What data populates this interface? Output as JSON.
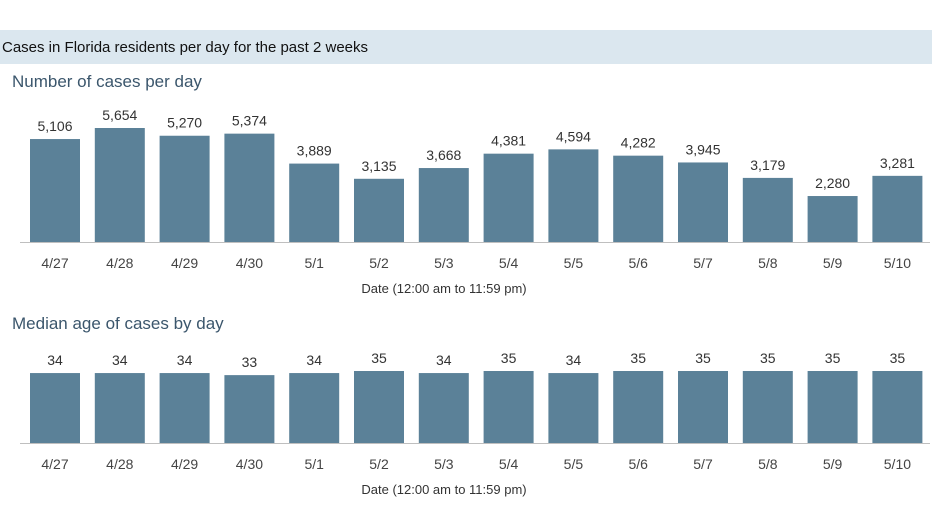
{
  "header": {
    "title": "Cases in Florida residents per day for the past 2 weeks"
  },
  "colors": {
    "bar": "#5b8198",
    "header_band": "#dbe7ef",
    "section_title": "#3b566c"
  },
  "chart_data": [
    {
      "type": "bar",
      "title": "Number of cases per day",
      "xlabel": "Date (12:00 am to 11:59 pm)",
      "ylabel": "",
      "ylim": [
        0,
        5654
      ],
      "grid": false,
      "categories": [
        "4/27",
        "4/28",
        "4/29",
        "4/30",
        "5/1",
        "5/2",
        "5/3",
        "5/4",
        "5/5",
        "5/6",
        "5/7",
        "5/8",
        "5/9",
        "5/10"
      ],
      "values": [
        5106,
        5654,
        5270,
        5374,
        3889,
        3135,
        3668,
        4381,
        4594,
        4282,
        3945,
        3179,
        2280,
        3281
      ],
      "labels": [
        "5,106",
        "5,654",
        "5,270",
        "5,374",
        "3,889",
        "3,135",
        "3,668",
        "4,381",
        "4,594",
        "4,282",
        "3,945",
        "3,179",
        "2,280",
        "3,281"
      ]
    },
    {
      "type": "bar",
      "title": "Median age of cases by day",
      "xlabel": "Date (12:00 am to 11:59 pm)",
      "ylabel": "",
      "ylim": [
        0,
        35
      ],
      "grid": false,
      "categories": [
        "4/27",
        "4/28",
        "4/29",
        "4/30",
        "5/1",
        "5/2",
        "5/3",
        "5/4",
        "5/5",
        "5/6",
        "5/7",
        "5/8",
        "5/9",
        "5/10"
      ],
      "values": [
        34,
        34,
        34,
        33,
        34,
        35,
        34,
        35,
        34,
        35,
        35,
        35,
        35,
        35
      ],
      "labels": [
        "34",
        "34",
        "34",
        "33",
        "34",
        "35",
        "34",
        "35",
        "34",
        "35",
        "35",
        "35",
        "35",
        "35"
      ]
    }
  ]
}
